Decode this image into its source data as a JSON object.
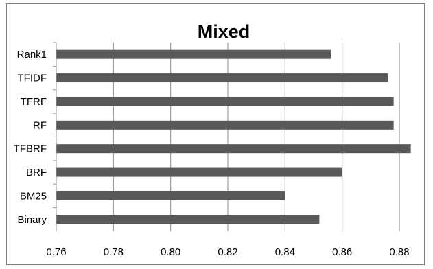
{
  "chart_data": {
    "type": "bar",
    "orientation": "horizontal",
    "title": "Mixed",
    "categories": [
      "Rank1",
      "TFIDF",
      "TFRF",
      "RF",
      "TFBRF",
      "BRF",
      "BM25",
      "Binary"
    ],
    "values": [
      0.856,
      0.876,
      0.878,
      0.878,
      0.884,
      0.86,
      0.84,
      0.852
    ],
    "xlim": [
      0.76,
      0.895
    ],
    "xticks": [
      "0.76",
      "0.78",
      "0.80",
      "0.82",
      "0.84",
      "0.86",
      "0.88"
    ],
    "xlabel": "",
    "ylabel": "",
    "grid": "vertical",
    "legend": "none",
    "bar_color": "#595959",
    "grid_color": "#8c8c8c"
  }
}
